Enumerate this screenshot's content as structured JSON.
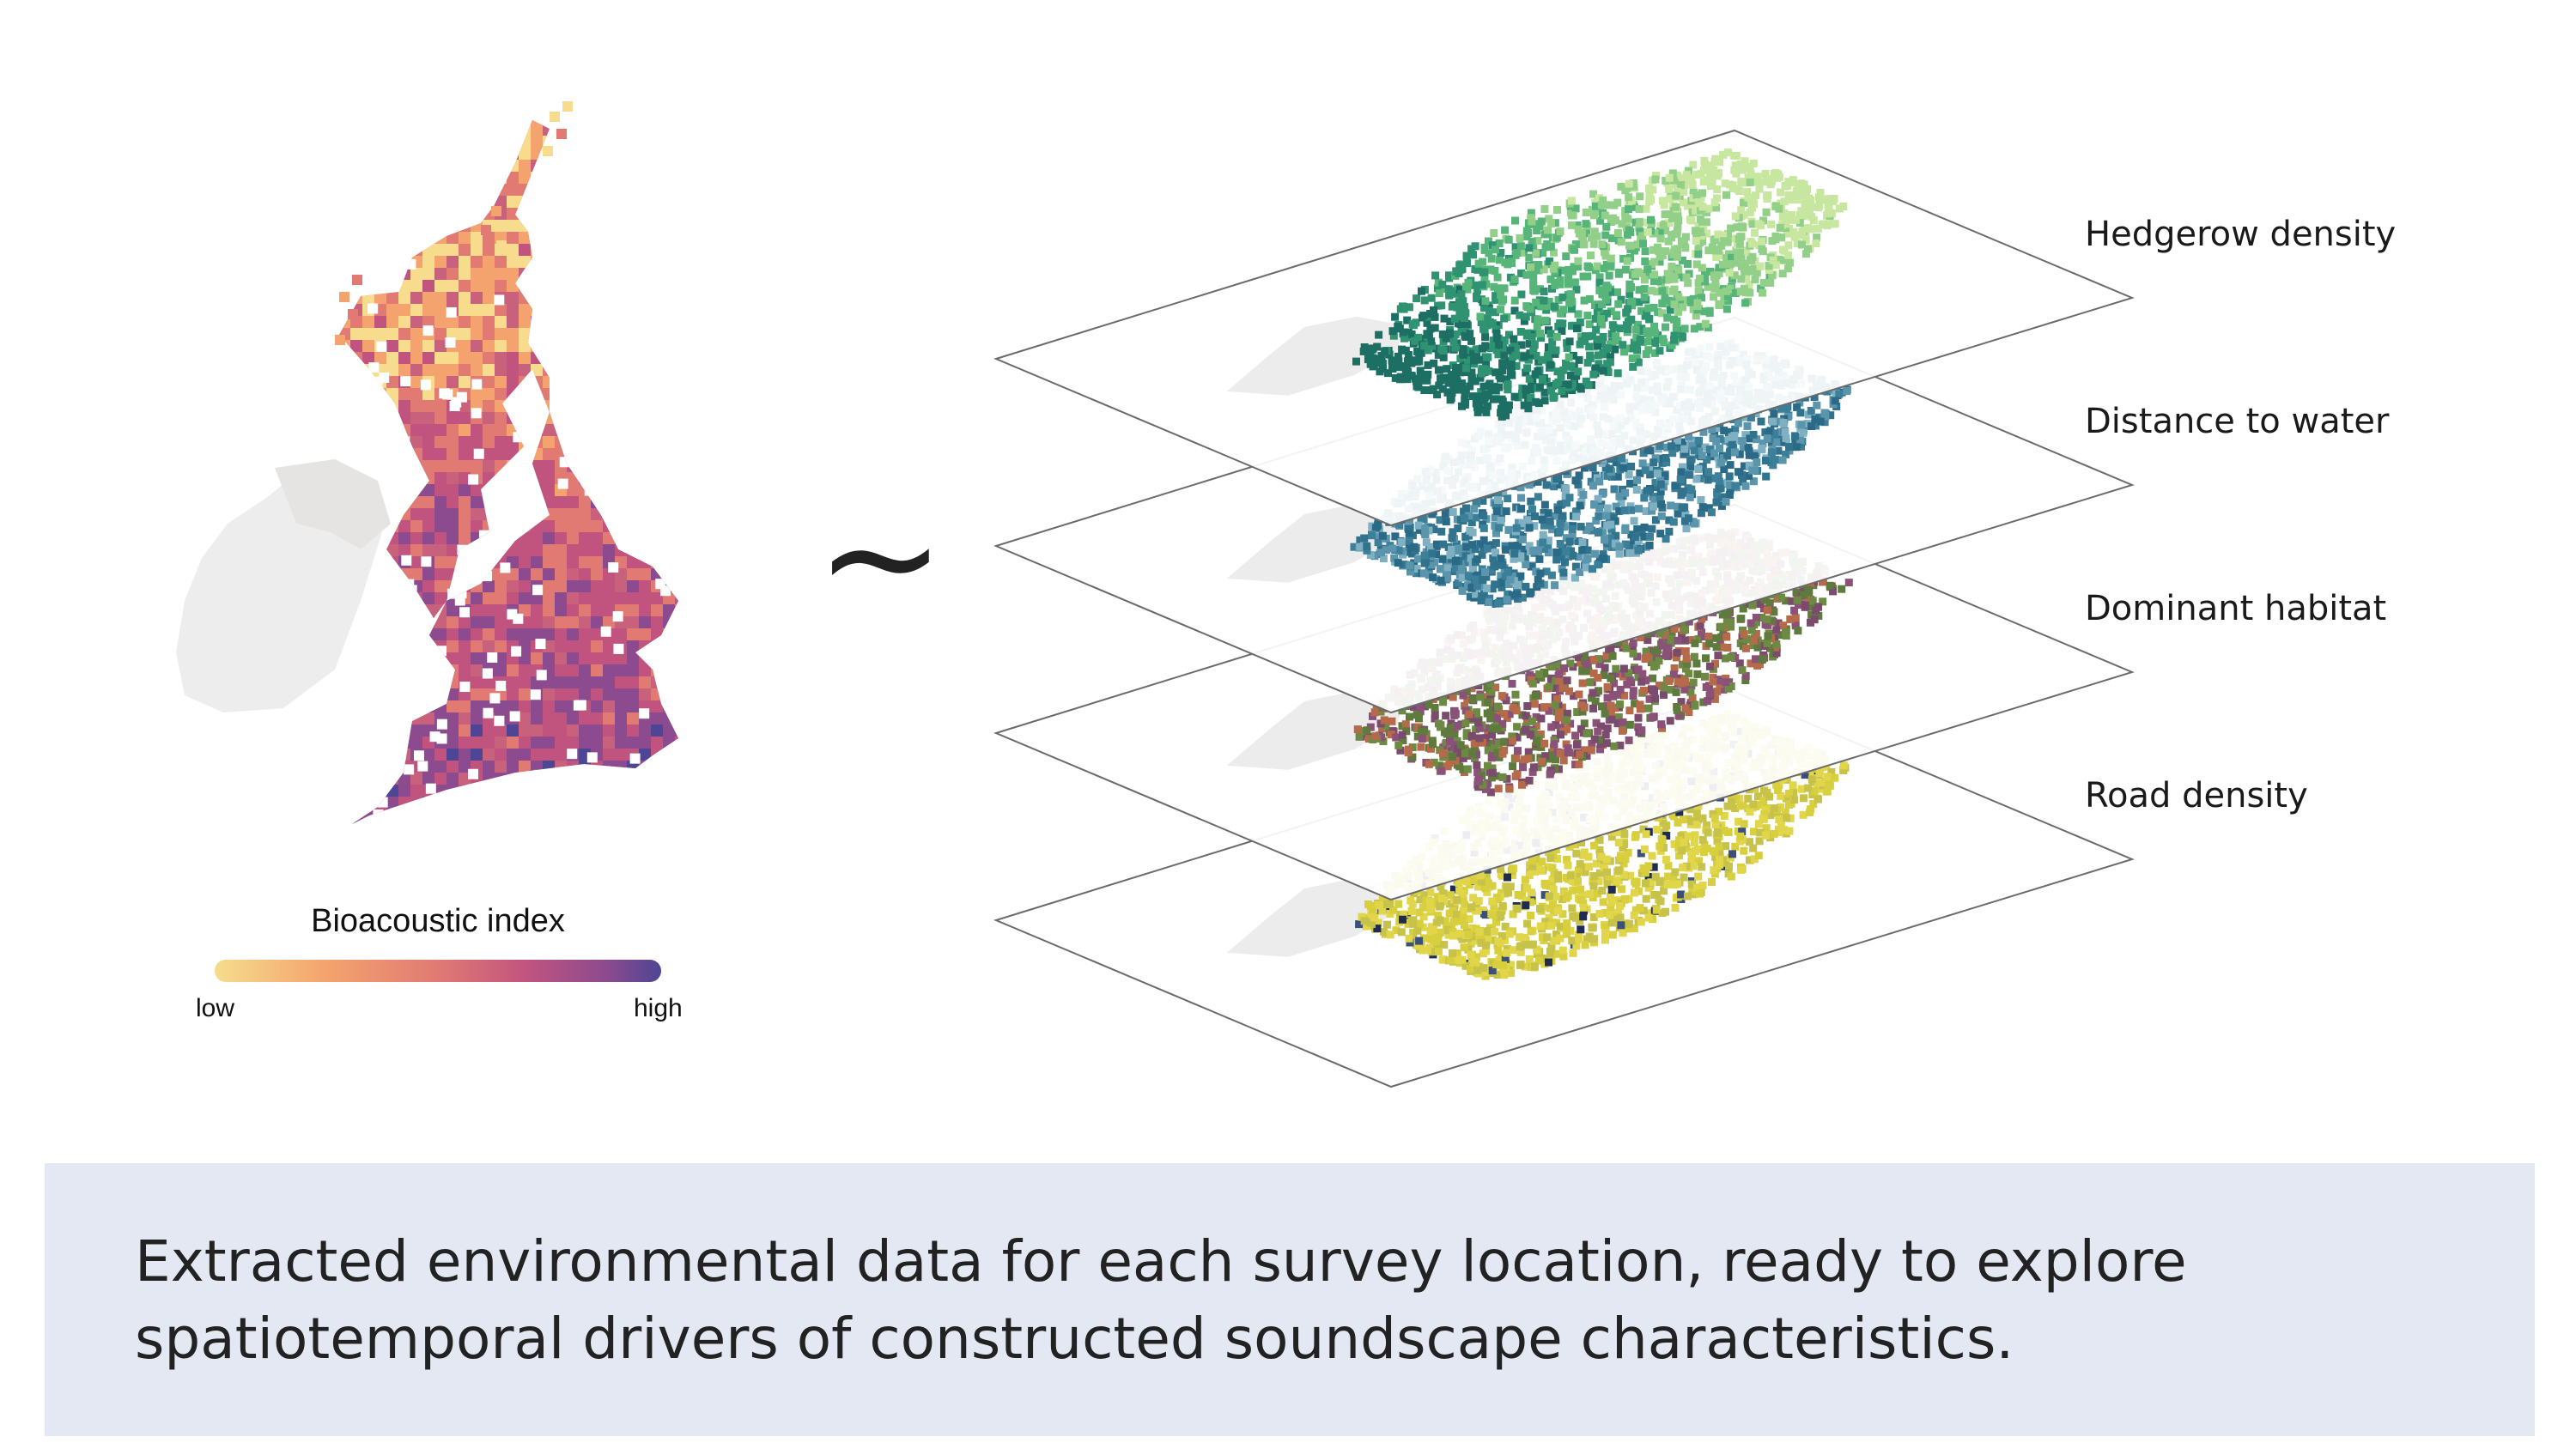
{
  "legend": {
    "title": "Bioacoustic index",
    "low_label": "low",
    "high_label": "high",
    "gradient_colors": [
      "#f6dc8c",
      "#f4a36e",
      "#e07a73",
      "#c0547f",
      "#8c4a8f",
      "#4e4594"
    ]
  },
  "relation_symbol": "~",
  "layers": [
    {
      "label": "Hedgerow density",
      "palette": [
        "#1d6e63",
        "#2f9372",
        "#58b57a",
        "#92cf88",
        "#c7e6a0"
      ]
    },
    {
      "label": "Distance to water",
      "palette": [
        "#2b6a86",
        "#31728c",
        "#3c7f99",
        "#5a95ac",
        "#7fb0c2"
      ]
    },
    {
      "label": "Dominant habitat",
      "palette": [
        "#7a4b6c",
        "#8a5278",
        "#5e7a3c",
        "#6d8a45",
        "#b56a4a"
      ]
    },
    {
      "label": "Road density",
      "palette": [
        "#d8cf3e",
        "#e1d64a",
        "#c7c24a",
        "#3a4f7a",
        "#1f2c52"
      ]
    }
  ],
  "caption": "Extracted environmental data for each survey location, ready to explore spatiotemporal drivers of constructed soundscape characteristics."
}
